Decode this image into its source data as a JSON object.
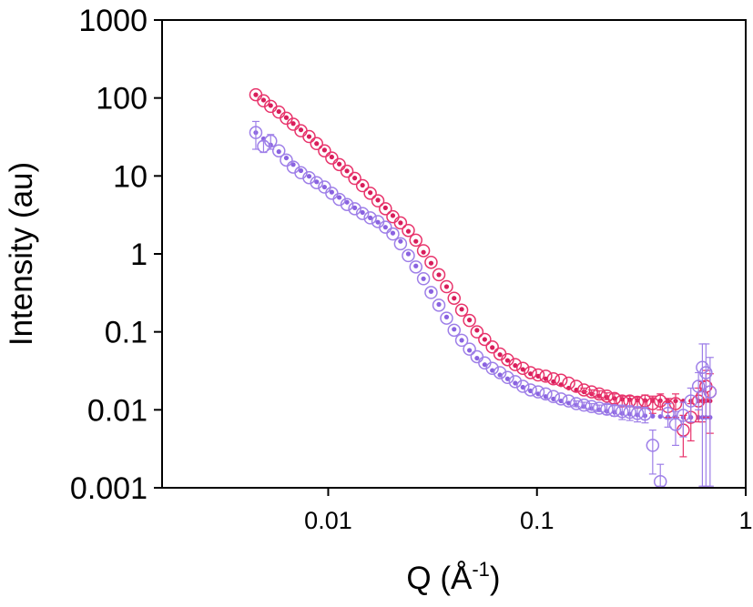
{
  "chart_data": {
    "type": "scatter",
    "x_scale": "log",
    "y_scale": "log",
    "xlim": [
      0.0016,
      1
    ],
    "ylim": [
      0.001,
      1000
    ],
    "xlabel": "Q (Å",
    "xlabel_superscript": "-1",
    "xlabel_suffix": ")",
    "ylabel": "Intensity (au)",
    "x_ticks": [
      {
        "value": 0.01,
        "label": "0.01"
      },
      {
        "value": 0.1,
        "label": "0.1"
      },
      {
        "value": 1,
        "label": "1"
      }
    ],
    "y_ticks": [
      {
        "value": 0.001,
        "label": "0.001"
      },
      {
        "value": 0.01,
        "label": "0.01"
      },
      {
        "value": 0.1,
        "label": "0.1"
      },
      {
        "value": 1,
        "label": "1"
      },
      {
        "value": 10,
        "label": "10"
      },
      {
        "value": 100,
        "label": "100"
      },
      {
        "value": 1000,
        "label": "1000"
      }
    ],
    "grid": false,
    "legend": "none",
    "series": [
      {
        "color": "#e8336b",
        "fit_color": "#d81e5b",
        "marker": "open-circle",
        "x": [
          0.0045,
          0.0049,
          0.0053,
          0.0058,
          0.0063,
          0.0068,
          0.0074,
          0.0081,
          0.0088,
          0.0096,
          0.0104,
          0.0113,
          0.0123,
          0.0134,
          0.0146,
          0.0159,
          0.0173,
          0.0188,
          0.0204,
          0.0222,
          0.0242,
          0.0263,
          0.0286,
          0.0311,
          0.0339,
          0.0369,
          0.0401,
          0.0436,
          0.0475,
          0.0516,
          0.0562,
          0.0611,
          0.0665,
          0.0723,
          0.0787,
          0.0856,
          0.0931,
          0.1013,
          0.1102,
          0.1199,
          0.1304,
          0.1419,
          0.1544,
          0.1679,
          0.1827,
          0.1987,
          0.2162,
          0.2352,
          0.2559,
          0.2784,
          0.3028,
          0.3294,
          0.3584,
          0.3899,
          0.4241,
          0.4614,
          0.502,
          0.546,
          0.594,
          0.62,
          0.645,
          0.675
        ],
        "y": [
          110,
          92,
          78,
          66,
          55,
          46,
          38,
          32,
          26,
          21,
          17,
          14,
          11.5,
          9.3,
          7.5,
          6.0,
          4.8,
          3.8,
          3.0,
          2.5,
          2.0,
          1.5,
          1.1,
          0.78,
          0.54,
          0.38,
          0.27,
          0.19,
          0.14,
          0.1,
          0.08,
          0.064,
          0.052,
          0.044,
          0.038,
          0.034,
          0.03,
          0.028,
          0.027,
          0.025,
          0.024,
          0.022,
          0.02,
          0.018,
          0.017,
          0.016,
          0.015,
          0.014,
          0.013,
          0.013,
          0.0125,
          0.013,
          0.012,
          0.013,
          0.011,
          0.012,
          0.0055,
          0.008,
          0.013,
          0.015,
          0.02,
          0.017
        ],
        "err": [
          0,
          0,
          0,
          0,
          0,
          0,
          0,
          0,
          0,
          0,
          0,
          0,
          0,
          0,
          0,
          0,
          0,
          0,
          0,
          0,
          0,
          0,
          0,
          0,
          0,
          0,
          0,
          0,
          0,
          0,
          0,
          0,
          0,
          0,
          0,
          0,
          0,
          0,
          0,
          0,
          0,
          0,
          0,
          0.001,
          0.001,
          0.0015,
          0.0015,
          0.002,
          0.002,
          0.002,
          0.002,
          0.0025,
          0.003,
          0.003,
          0.003,
          0.004,
          0.003,
          0.004,
          0.006,
          0.008,
          0.012,
          0.012
        ],
        "fit_y": [
          110,
          94,
          80,
          67,
          56,
          47,
          39,
          32,
          26,
          21.5,
          17.5,
          14.2,
          11.6,
          9.4,
          7.6,
          6.1,
          4.9,
          3.9,
          3.1,
          2.5,
          1.95,
          1.45,
          1.05,
          0.76,
          0.54,
          0.38,
          0.27,
          0.195,
          0.142,
          0.105,
          0.08,
          0.063,
          0.051,
          0.043,
          0.037,
          0.033,
          0.029,
          0.027,
          0.025,
          0.023,
          0.021,
          0.019,
          0.018,
          0.017,
          0.016,
          0.015,
          0.0145,
          0.014,
          0.0137,
          0.0135,
          0.0133,
          0.0132,
          0.0131,
          0.0131,
          0.013,
          0.013,
          0.013,
          0.013,
          0.013,
          0.013,
          0.013,
          0.013
        ]
      },
      {
        "color": "#9e7fe8",
        "fit_color": "#8a63e0",
        "marker": "open-circle",
        "x": [
          0.0045,
          0.0049,
          0.0053,
          0.0058,
          0.0063,
          0.0068,
          0.0074,
          0.0081,
          0.0088,
          0.0096,
          0.0104,
          0.0113,
          0.0123,
          0.0134,
          0.0146,
          0.0159,
          0.0173,
          0.0188,
          0.0204,
          0.0222,
          0.0242,
          0.0263,
          0.0286,
          0.0311,
          0.0339,
          0.0369,
          0.0401,
          0.0436,
          0.0475,
          0.0516,
          0.0562,
          0.0611,
          0.0665,
          0.0723,
          0.0787,
          0.0856,
          0.0931,
          0.1013,
          0.1102,
          0.1199,
          0.1304,
          0.1419,
          0.1544,
          0.1679,
          0.1827,
          0.1987,
          0.2162,
          0.2352,
          0.2559,
          0.2784,
          0.3028,
          0.3294,
          0.3584,
          0.3899,
          0.4241,
          0.4614,
          0.502,
          0.546,
          0.594,
          0.62,
          0.645,
          0.675
        ],
        "y": [
          36,
          24,
          28,
          21,
          16,
          13,
          11,
          9.5,
          8.2,
          7.2,
          6.0,
          5.0,
          4.3,
          3.8,
          3.3,
          2.9,
          2.6,
          2.2,
          1.8,
          1.35,
          0.95,
          0.68,
          0.48,
          0.32,
          0.22,
          0.15,
          0.105,
          0.078,
          0.06,
          0.048,
          0.04,
          0.034,
          0.03,
          0.026,
          0.023,
          0.02,
          0.018,
          0.017,
          0.016,
          0.0148,
          0.0138,
          0.013,
          0.012,
          0.0115,
          0.011,
          0.0105,
          0.0102,
          0.0098,
          0.0095,
          0.0093,
          0.009,
          0.0088,
          0.0035,
          0.0012,
          0.009,
          0.0065,
          0.0085,
          0.013,
          0.02,
          0.035,
          0.03,
          0.017
        ],
        "err": [
          14,
          4,
          6,
          0,
          0,
          0,
          0,
          0,
          0,
          0,
          0,
          0,
          0,
          0,
          0,
          0,
          0,
          0,
          0,
          0,
          0,
          0,
          0,
          0,
          0,
          0,
          0,
          0,
          0,
          0,
          0,
          0,
          0,
          0,
          0,
          0,
          0,
          0,
          0,
          0,
          0,
          0,
          0.001,
          0.001,
          0.001,
          0.001,
          0.0015,
          0.0015,
          0.002,
          0.002,
          0.002,
          0.002,
          0.002,
          0.0008,
          0.003,
          0.003,
          0.004,
          0.006,
          0.01,
          0.035,
          0.04,
          0.03
        ],
        "fit_y": [
          36,
          30,
          25,
          20.5,
          17,
          14,
          11.7,
          9.9,
          8.4,
          7.2,
          6.2,
          5.3,
          4.6,
          3.9,
          3.4,
          2.9,
          2.55,
          2.2,
          1.85,
          1.45,
          1.0,
          0.7,
          0.48,
          0.33,
          0.225,
          0.155,
          0.108,
          0.078,
          0.058,
          0.046,
          0.038,
          0.032,
          0.028,
          0.025,
          0.022,
          0.0195,
          0.0175,
          0.016,
          0.0148,
          0.0138,
          0.013,
          0.0122,
          0.0115,
          0.011,
          0.0104,
          0.01,
          0.0096,
          0.0093,
          0.009,
          0.0088,
          0.0086,
          0.0084,
          0.0083,
          0.0082,
          0.0081,
          0.008,
          0.008,
          0.008,
          0.008,
          0.008,
          0.008,
          0.008
        ]
      }
    ]
  }
}
